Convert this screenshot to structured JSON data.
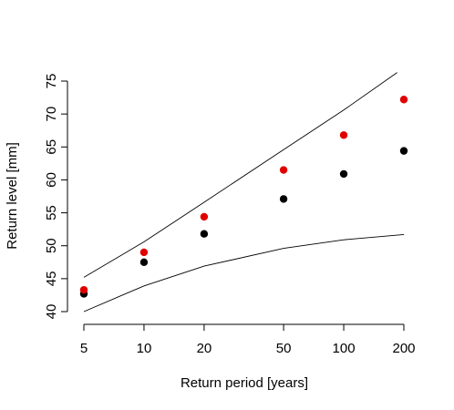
{
  "chart_data": {
    "type": "scatter",
    "title": "",
    "xlabel": "Return period [years]",
    "ylabel": "Return level [mm]",
    "x_scale": "log",
    "xlim": [
      5,
      200
    ],
    "ylim": [
      40,
      75
    ],
    "x_ticks": [
      5,
      10,
      20,
      50,
      100,
      200
    ],
    "y_ticks": [
      40,
      45,
      50,
      55,
      60,
      65,
      70,
      75
    ],
    "grid": false,
    "series": [
      {
        "name": "black points",
        "kind": "points",
        "color": "#000000",
        "x": [
          5,
          10,
          20,
          50,
          100,
          200
        ],
        "y": [
          42.7,
          47.5,
          51.8,
          57.1,
          60.9,
          64.4
        ]
      },
      {
        "name": "red points",
        "kind": "points",
        "color": "#e00000",
        "x": [
          5,
          10,
          20,
          50,
          100,
          200
        ],
        "y": [
          43.3,
          49.0,
          54.4,
          61.5,
          66.8,
          72.2
        ]
      },
      {
        "name": "upper bound",
        "kind": "line",
        "color": "#000000",
        "x": [
          5,
          10,
          20,
          50,
          100,
          185
        ],
        "y": [
          45.2,
          50.6,
          56.6,
          64.6,
          70.6,
          76.3
        ]
      },
      {
        "name": "lower bound",
        "kind": "line",
        "color": "#000000",
        "x": [
          5,
          10,
          20,
          50,
          100,
          200
        ],
        "y": [
          40.0,
          43.9,
          46.9,
          49.6,
          50.9,
          51.7
        ]
      }
    ]
  }
}
